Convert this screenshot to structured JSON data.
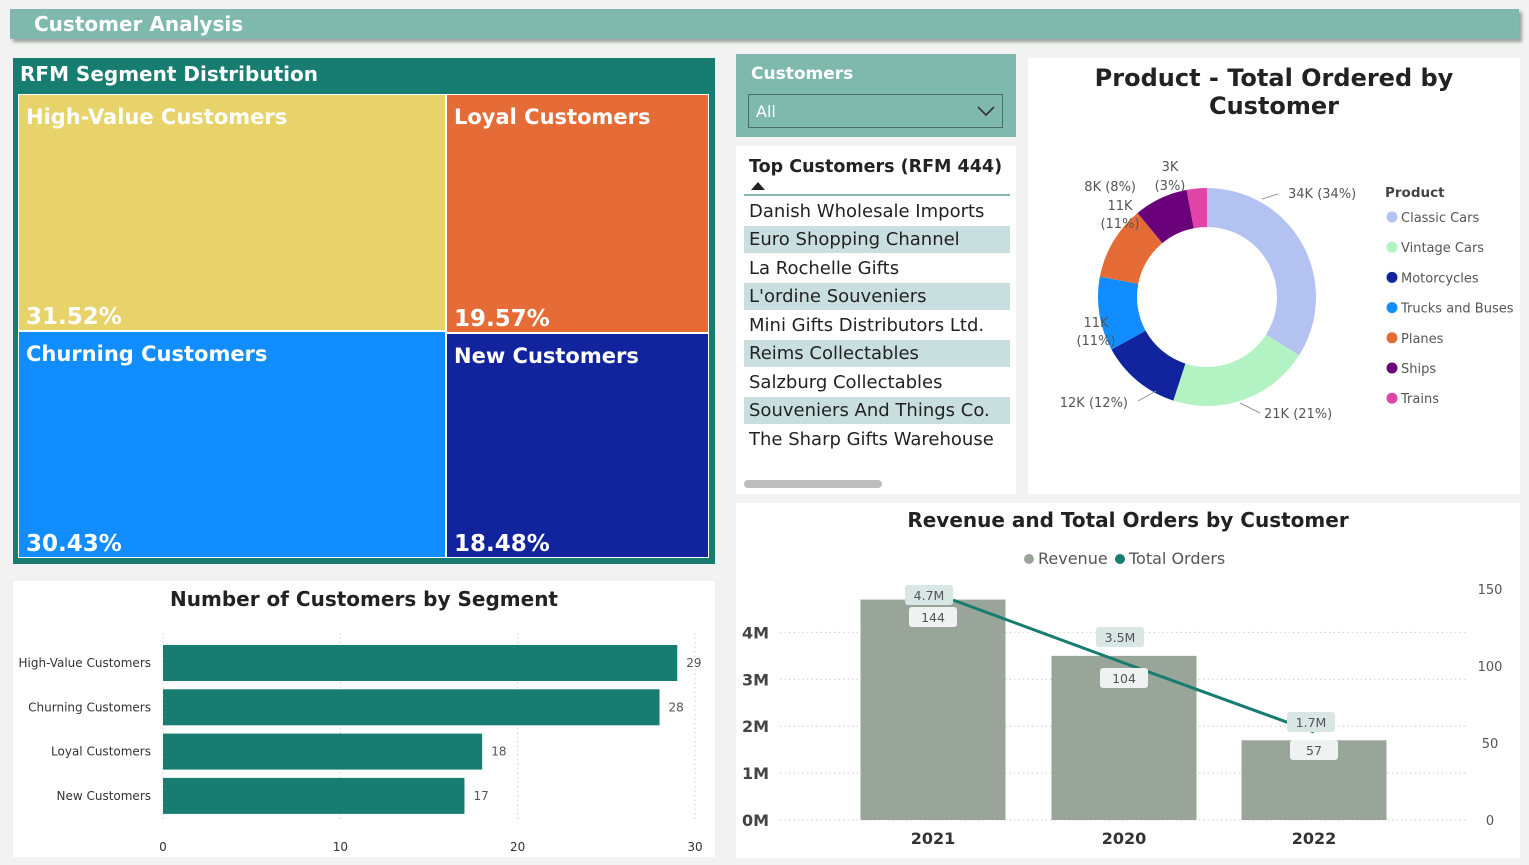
{
  "header": {
    "title": "Customer Analysis"
  },
  "treemap": {
    "title": "RFM Segment Distribution",
    "tiles": [
      {
        "label": "High-Value Customers",
        "pct": "31.52%",
        "color": "#e8d36a"
      },
      {
        "label": "Loyal Customers",
        "pct": "19.57%",
        "color": "#e66c37"
      },
      {
        "label": "Churning Customers",
        "pct": "30.43%",
        "color": "#118dff"
      },
      {
        "label": "New Customers",
        "pct": "18.48%",
        "color": "#12239e"
      }
    ]
  },
  "slicer": {
    "title": "Customers",
    "value": "All"
  },
  "table": {
    "header": "Top Customers (RFM 444)",
    "rows": [
      "Danish Wholesale Imports",
      "Euro Shopping Channel",
      "La Rochelle Gifts",
      "L'ordine Souveniers",
      "Mini Gifts Distributors Ltd.",
      "Reims Collectables",
      "Salzburg Collectables",
      "Souveniers And Things Co.",
      "The Sharp Gifts Warehouse"
    ]
  },
  "donut": {
    "title": "Product - Total Ordered by Customer",
    "legend_title": "Product",
    "chart_data": {
      "type": "pie",
      "title": "Product - Total Ordered by Customer",
      "legend_title": "Product",
      "slices": [
        {
          "name": "Classic Cars",
          "value": 34,
          "label": "34K (34%)",
          "color": "#b4c2f2"
        },
        {
          "name": "Vintage Cars",
          "value": 21,
          "label": "21K (21%)",
          "color": "#b3f2c2"
        },
        {
          "name": "Motorcycles",
          "value": 12,
          "label": "12K (12%)",
          "color": "#12239e"
        },
        {
          "name": "Trucks and Buses",
          "value": 11,
          "label": "11K (11%)",
          "color": "#118dff"
        },
        {
          "name": "Planes",
          "value": 11,
          "label": "11K (11%)",
          "color": "#e66c37"
        },
        {
          "name": "Ships",
          "value": 8,
          "label": "8K (8%)",
          "color": "#6b007b"
        },
        {
          "name": "Trains",
          "value": 3,
          "label": "3K (3%)",
          "color": "#e044a7"
        }
      ],
      "legend_position": "right"
    }
  },
  "bar": {
    "title": "Number of Customers by Segment",
    "chart_data": {
      "type": "bar",
      "orientation": "horizontal",
      "title": "Number of Customers by Segment",
      "categories": [
        "High-Value Customers",
        "Churning Customers",
        "Loyal Customers",
        "New Customers"
      ],
      "values": [
        29,
        28,
        18,
        17
      ],
      "xlim": [
        0,
        30
      ],
      "xticks": [
        0,
        10,
        20,
        30
      ],
      "color": "#177d70",
      "grid": true
    }
  },
  "combo": {
    "title": "Revenue and Total Orders by Customer",
    "chart_data": {
      "type": "bar",
      "title": "Revenue and Total Orders by Customer",
      "categories": [
        "2021",
        "2020",
        "2022"
      ],
      "series": [
        {
          "name": "Revenue",
          "kind": "bar",
          "values": [
            4.7,
            3.5,
            1.7
          ],
          "labels": [
            "4.7M",
            "3.5M",
            "1.7M"
          ],
          "color": "#9aa59a",
          "axis": "left"
        },
        {
          "name": "Total Orders",
          "kind": "line",
          "values": [
            144,
            104,
            57
          ],
          "labels": [
            "144",
            "104",
            "57"
          ],
          "color": "#177d70",
          "axis": "right"
        }
      ],
      "ylim": [
        0,
        5
      ],
      "yticks": [
        "0M",
        "1M",
        "2M",
        "3M",
        "4M"
      ],
      "y2lim": [
        0,
        150
      ],
      "y2ticks": [
        0,
        50,
        100,
        150
      ],
      "legend_position": "top",
      "grid": true
    }
  }
}
